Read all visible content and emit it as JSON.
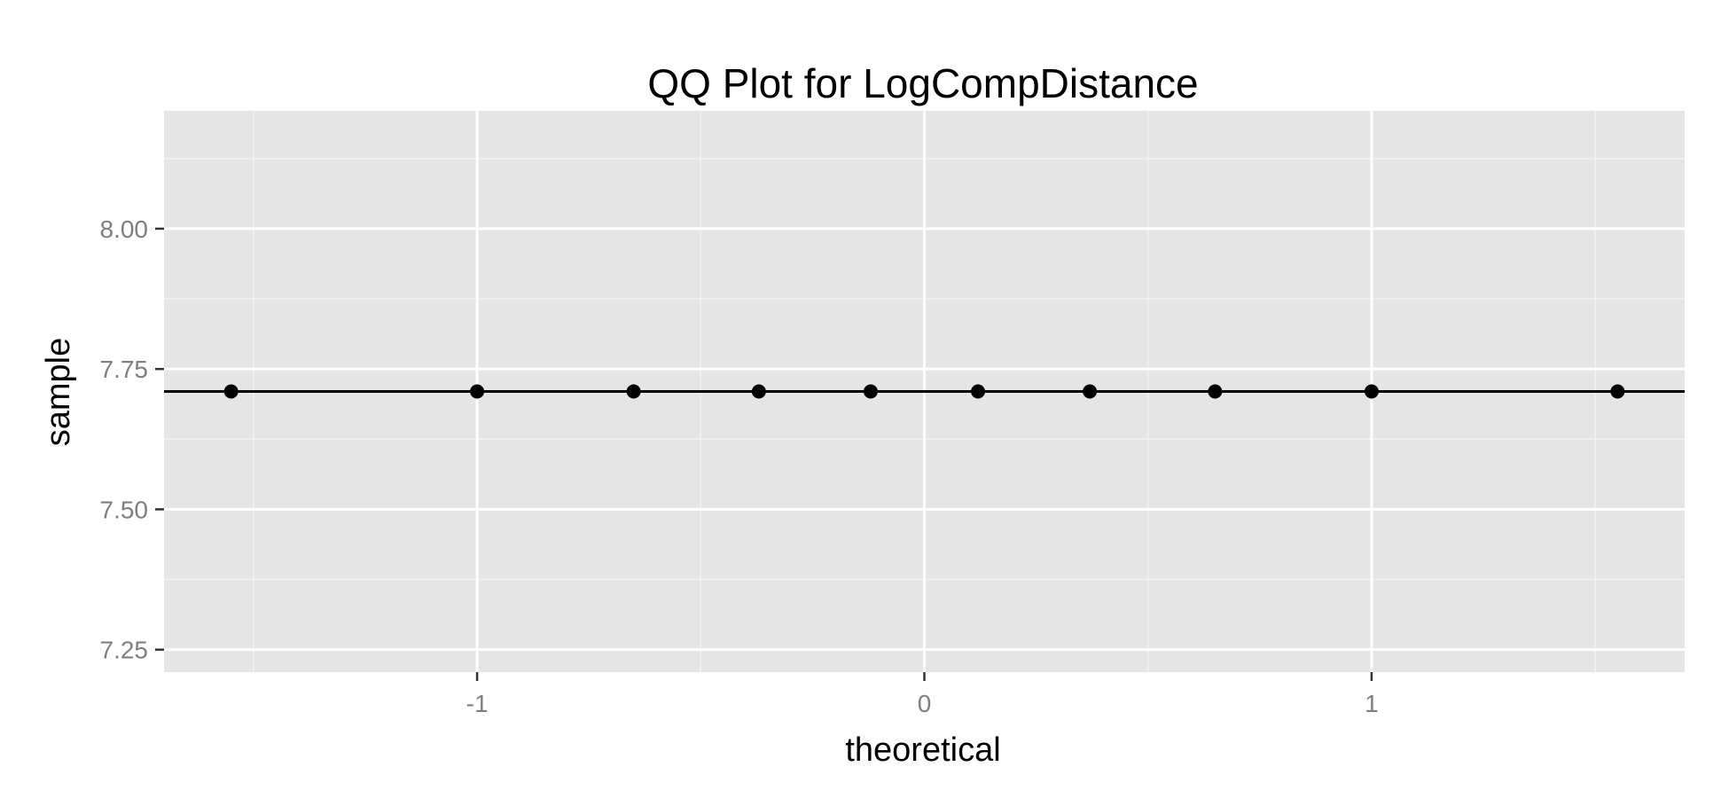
{
  "chart_data": {
    "type": "scatter",
    "title": "QQ Plot for LogCompDistance",
    "xlabel": "theoretical",
    "ylabel": "sample",
    "xlim": [
      -1.7,
      1.7
    ],
    "ylim": [
      7.21,
      8.21
    ],
    "x_ticks": [
      -1,
      0,
      1
    ],
    "x_tick_labels": [
      "-1",
      "0",
      "1"
    ],
    "y_ticks": [
      7.25,
      7.5,
      7.75,
      8.0
    ],
    "y_tick_labels": [
      "7.25",
      "7.50",
      "7.75",
      "8.00"
    ],
    "grid": true,
    "legend": "none",
    "series": [
      {
        "x": [
          -1.55,
          -1.0,
          -0.65,
          -0.37,
          -0.12,
          0.12,
          0.37,
          0.65,
          1.0,
          1.55
        ],
        "y": [
          7.71,
          7.71,
          7.71,
          7.71,
          7.71,
          7.71,
          7.71,
          7.71,
          7.71,
          7.71
        ]
      }
    ],
    "reference_line": {
      "intercept": 7.71,
      "slope": 0
    },
    "colors": {
      "panel": "#e5e5e5",
      "grid_major": "#ffffff",
      "grid_minor": "#f2f2f2",
      "points": "#000000",
      "line": "#000000",
      "tick_text": "#7f7f7f"
    }
  }
}
